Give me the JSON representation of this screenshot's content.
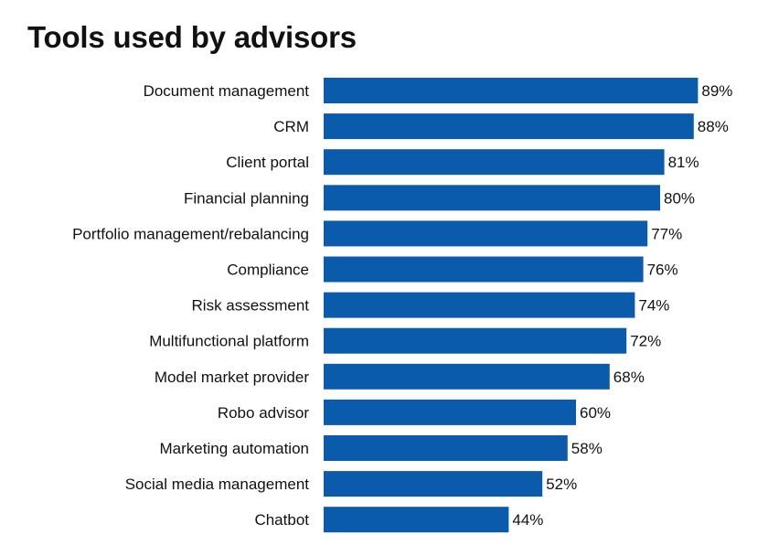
{
  "chart_data": {
    "type": "bar",
    "orientation": "horizontal",
    "title": "Tools used by advisors",
    "categories": [
      "Document management",
      "CRM",
      "Client portal",
      "Financial planning",
      "Portfolio management/rebalancing",
      "Compliance",
      "Risk assessment",
      "Multifunctional platform",
      "Model market provider",
      "Robo advisor",
      "Marketing automation",
      "Social media management",
      "Chatbot"
    ],
    "values": [
      89,
      88,
      81,
      80,
      77,
      76,
      74,
      72,
      68,
      60,
      58,
      52,
      44
    ],
    "value_labels": [
      "89%",
      "88%",
      "81%",
      "80%",
      "77%",
      "76%",
      "74%",
      "72%",
      "68%",
      "60%",
      "58%",
      "52%",
      "44%"
    ],
    "unit": "%",
    "xlim": [
      0,
      100
    ],
    "grid": false,
    "bar_color": "#0a5bab"
  }
}
